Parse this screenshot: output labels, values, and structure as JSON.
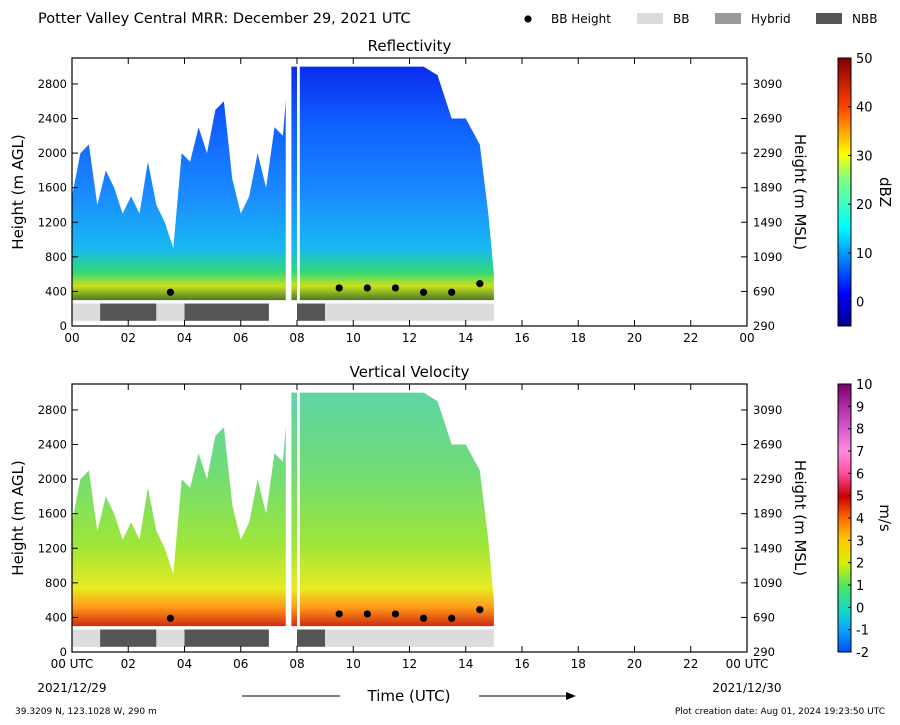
{
  "title": "Potter Valley Central MRR:  December 29, 2021 UTC",
  "legend": {
    "items": [
      {
        "label": "BB Height",
        "kind": "marker",
        "color": "#000000"
      },
      {
        "label": "BB",
        "kind": "patch",
        "color": "#dcdcdc"
      },
      {
        "label": "Hybrid",
        "kind": "patch",
        "color": "#9a9a9a"
      },
      {
        "label": "NBB",
        "kind": "patch",
        "color": "#555555"
      }
    ]
  },
  "footer": {
    "location": "39.3209 N, 123.1028 W, 290 m",
    "created": "Plot creation date: Aug 01, 2024 19:23:50 UTC",
    "xlabel": "Time (UTC)",
    "start_date": "2021/12/29",
    "end_date": "2021/12/30"
  },
  "chart_data": [
    {
      "type": "heatmap",
      "title": "Reflectivity",
      "ylabel": "Height (m AGL)",
      "ylabel_right": "Height (m MSL)",
      "colorbar": {
        "label": "dBZ",
        "range": [
          -5,
          50
        ],
        "ticks": [
          0,
          10,
          20,
          30,
          40,
          50
        ],
        "colormap": "jet"
      },
      "xlim": [
        0,
        24
      ],
      "ylim": [
        0,
        3100
      ],
      "x_ticks": [
        "00",
        "02",
        "04",
        "06",
        "08",
        "10",
        "12",
        "14",
        "16",
        "18",
        "20",
        "22",
        "00"
      ],
      "y_ticks": [
        0,
        400,
        800,
        1200,
        1600,
        2000,
        2400,
        2800
      ],
      "y_ticks_right": [
        290,
        690,
        1090,
        1490,
        1890,
        2290,
        2690,
        3090
      ],
      "bb_height": {
        "x": [
          3.5,
          9.5,
          10.5,
          11.5,
          12.5,
          13.5,
          14.5
        ],
        "y": [
          390,
          440,
          440,
          440,
          390,
          390,
          490
        ]
      },
      "bb_type_segments": [
        {
          "start": 0,
          "end": 1,
          "type": "BB"
        },
        {
          "start": 1,
          "end": 3,
          "type": "NBB"
        },
        {
          "start": 3,
          "end": 4,
          "type": "BB"
        },
        {
          "start": 4,
          "end": 7,
          "type": "NBB"
        },
        {
          "start": 8,
          "end": 9,
          "type": "NBB"
        },
        {
          "start": 9,
          "end": 15,
          "type": "BB"
        }
      ],
      "echo_top_profile": [
        [
          0.0,
          1500
        ],
        [
          0.3,
          2000
        ],
        [
          0.6,
          2100
        ],
        [
          0.9,
          1400
        ],
        [
          1.2,
          1800
        ],
        [
          1.5,
          1600
        ],
        [
          1.8,
          1300
        ],
        [
          2.1,
          1500
        ],
        [
          2.4,
          1300
        ],
        [
          2.7,
          1900
        ],
        [
          3.0,
          1400
        ],
        [
          3.3,
          1200
        ],
        [
          3.6,
          900
        ],
        [
          3.9,
          2000
        ],
        [
          4.2,
          1900
        ],
        [
          4.5,
          2300
        ],
        [
          4.8,
          2000
        ],
        [
          5.1,
          2500
        ],
        [
          5.4,
          2600
        ],
        [
          5.7,
          1700
        ],
        [
          6.0,
          1300
        ],
        [
          6.3,
          1500
        ],
        [
          6.6,
          2000
        ],
        [
          6.9,
          1600
        ],
        [
          7.2,
          2300
        ],
        [
          7.5,
          2200
        ],
        [
          7.7,
          3000
        ],
        [
          8.0,
          3000
        ],
        [
          8.5,
          3000
        ],
        [
          9.0,
          3000
        ],
        [
          9.5,
          3000
        ],
        [
          10.0,
          3000
        ],
        [
          10.5,
          3000
        ],
        [
          11.0,
          3000
        ],
        [
          11.5,
          3000
        ],
        [
          12.0,
          3000
        ],
        [
          12.5,
          3000
        ],
        [
          13.0,
          2900
        ],
        [
          13.5,
          2400
        ],
        [
          14.0,
          2400
        ],
        [
          14.5,
          2100
        ],
        [
          14.8,
          1300
        ],
        [
          15.0,
          600
        ]
      ],
      "data_gaps": [
        [
          7.6,
          7.8
        ],
        [
          8.0,
          8.1
        ]
      ]
    },
    {
      "type": "heatmap",
      "title": "Vertical Velocity",
      "ylabel": "Height (m AGL)",
      "ylabel_right": "Height (m MSL)",
      "colorbar": {
        "label": "m/s",
        "range": [
          -2,
          10
        ],
        "ticks": [
          -2,
          -1,
          0,
          1,
          2,
          3,
          4,
          5,
          6,
          7,
          8,
          9,
          10
        ],
        "colormap": "velocity"
      },
      "xlim": [
        0,
        24
      ],
      "ylim": [
        0,
        3100
      ],
      "x_ticks": [
        "00 UTC",
        "02",
        "04",
        "06",
        "08",
        "10",
        "12",
        "14",
        "16",
        "18",
        "20",
        "22",
        "00 UTC"
      ],
      "y_ticks": [
        0,
        400,
        800,
        1200,
        1600,
        2000,
        2400,
        2800
      ],
      "y_ticks_right": [
        290,
        690,
        1090,
        1490,
        1890,
        2290,
        2690,
        3090
      ],
      "bb_height": {
        "x": [
          3.5,
          9.5,
          10.5,
          11.5,
          12.5,
          13.5,
          14.5
        ],
        "y": [
          390,
          440,
          440,
          440,
          390,
          390,
          490
        ]
      },
      "bb_type_segments": [
        {
          "start": 0,
          "end": 1,
          "type": "BB"
        },
        {
          "start": 1,
          "end": 3,
          "type": "NBB"
        },
        {
          "start": 3,
          "end": 4,
          "type": "BB"
        },
        {
          "start": 4,
          "end": 7,
          "type": "NBB"
        },
        {
          "start": 8,
          "end": 9,
          "type": "NBB"
        },
        {
          "start": 9,
          "end": 15,
          "type": "BB"
        }
      ],
      "echo_top_profile": [
        [
          0.0,
          1500
        ],
        [
          0.3,
          2000
        ],
        [
          0.6,
          2100
        ],
        [
          0.9,
          1400
        ],
        [
          1.2,
          1800
        ],
        [
          1.5,
          1600
        ],
        [
          1.8,
          1300
        ],
        [
          2.1,
          1500
        ],
        [
          2.4,
          1300
        ],
        [
          2.7,
          1900
        ],
        [
          3.0,
          1400
        ],
        [
          3.3,
          1200
        ],
        [
          3.6,
          900
        ],
        [
          3.9,
          2000
        ],
        [
          4.2,
          1900
        ],
        [
          4.5,
          2300
        ],
        [
          4.8,
          2000
        ],
        [
          5.1,
          2500
        ],
        [
          5.4,
          2600
        ],
        [
          5.7,
          1700
        ],
        [
          6.0,
          1300
        ],
        [
          6.3,
          1500
        ],
        [
          6.6,
          2000
        ],
        [
          6.9,
          1600
        ],
        [
          7.2,
          2300
        ],
        [
          7.5,
          2200
        ],
        [
          7.7,
          3000
        ],
        [
          8.0,
          3000
        ],
        [
          8.5,
          3000
        ],
        [
          9.0,
          3000
        ],
        [
          9.5,
          3000
        ],
        [
          10.0,
          3000
        ],
        [
          10.5,
          3000
        ],
        [
          11.0,
          3000
        ],
        [
          11.5,
          3000
        ],
        [
          12.0,
          3000
        ],
        [
          12.5,
          3000
        ],
        [
          13.0,
          2900
        ],
        [
          13.5,
          2400
        ],
        [
          14.0,
          2400
        ],
        [
          14.5,
          2100
        ],
        [
          14.8,
          1300
        ],
        [
          15.0,
          600
        ]
      ],
      "data_gaps": [
        [
          7.6,
          7.8
        ],
        [
          8.0,
          8.1
        ]
      ]
    }
  ]
}
